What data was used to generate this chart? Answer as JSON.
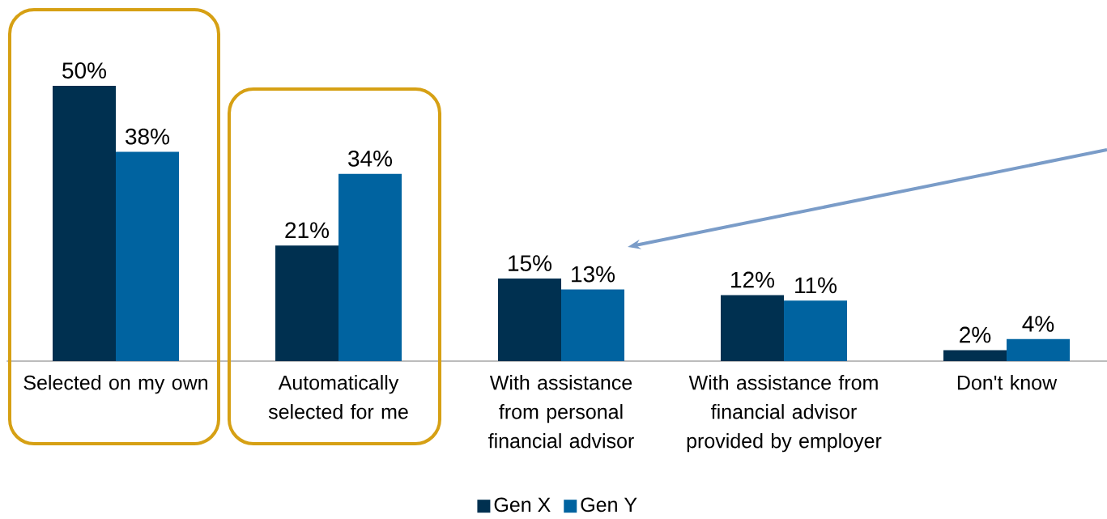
{
  "chart_data": {
    "type": "bar",
    "categories": [
      "Selected on my own",
      "Automatically selected for me",
      "With assistance from personal financial advisor",
      "With assistance from financial advisor provided by employer",
      "Don't know"
    ],
    "series": [
      {
        "name": "Gen X",
        "color": "#003050",
        "values": [
          50,
          21,
          15,
          12,
          2
        ],
        "value_labels": [
          "50%",
          "21%",
          "15%",
          "12%",
          "2%"
        ]
      },
      {
        "name": "Gen Y",
        "color": "#0063a0",
        "values": [
          38,
          34,
          13,
          11,
          4
        ],
        "value_labels": [
          "38%",
          "34%",
          "13%",
          "11%",
          "4%"
        ]
      }
    ],
    "legend": "bottom"
  }
}
